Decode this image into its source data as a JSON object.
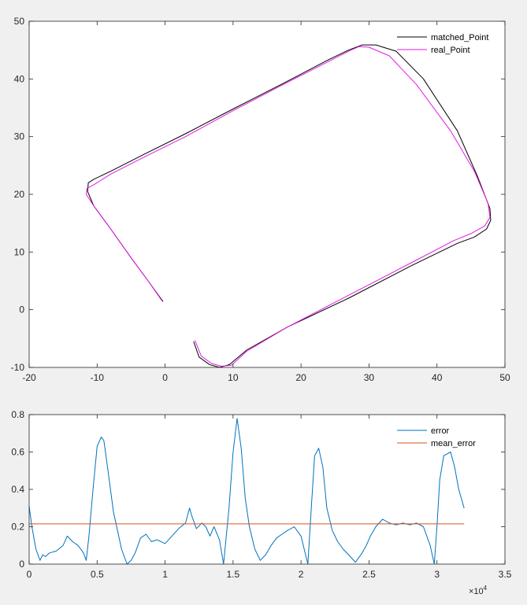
{
  "chart_data": [
    {
      "type": "line",
      "xlim": [
        -20,
        50
      ],
      "ylim": [
        -10,
        50
      ],
      "xticks": [
        -20,
        -10,
        0,
        10,
        20,
        30,
        40,
        50
      ],
      "yticks": [
        -10,
        0,
        10,
        20,
        30,
        40,
        50
      ],
      "xtick_labels": [
        "-20",
        "-10",
        "0",
        "10",
        "20",
        "30",
        "40",
        "50"
      ],
      "ytick_labels": [
        "-10",
        "0",
        "10",
        "20",
        "30",
        "40",
        "50"
      ],
      "grid": false,
      "legend_position": "top-right",
      "series": [
        {
          "name": "matched_Point",
          "color": "#000000",
          "x": [
            -0.3,
            -2.5,
            -5.0,
            -8.0,
            -10.5,
            -11.4,
            -11.3,
            -10.5,
            -8.0,
            -3.0,
            3.0,
            10.0,
            17.0,
            24.0,
            27.0,
            29.0,
            31.0,
            34.0,
            38.0,
            43.0,
            46.0,
            47.8,
            47.9,
            47.3,
            45.5,
            43.0,
            36.0,
            27.0,
            18.0,
            12.0,
            9.5,
            8.0,
            6.5,
            5.0,
            4.2
          ],
          "y": [
            1.4,
            5.0,
            9.0,
            14.0,
            18.0,
            20.5,
            22.0,
            22.6,
            24.0,
            27.0,
            30.5,
            34.8,
            39.0,
            43.3,
            45.0,
            45.9,
            45.9,
            44.8,
            40.0,
            31.0,
            23.0,
            17.5,
            15.5,
            14.0,
            12.6,
            11.5,
            7.5,
            2.0,
            -3.0,
            -7.0,
            -9.5,
            -10.0,
            -9.5,
            -8.2,
            -5.5
          ]
        },
        {
          "name": "real_Point",
          "color": "#e619e6",
          "x": [
            -0.5,
            -2.5,
            -5.0,
            -8.0,
            -10.5,
            -11.6,
            -11.5,
            -10.3,
            -8.0,
            -3.0,
            3.0,
            10.0,
            17.0,
            24.0,
            27.0,
            28.5,
            30.0,
            33.0,
            37.0,
            42.0,
            45.5,
            47.5,
            47.8,
            47.0,
            45.0,
            42.5,
            36.0,
            27.0,
            18.0,
            12.0,
            9.8,
            8.3,
            6.8,
            5.3,
            4.4
          ],
          "y": [
            1.6,
            5.0,
            9.0,
            14.0,
            18.0,
            20.0,
            21.0,
            21.8,
            23.5,
            26.5,
            30.0,
            34.5,
            38.8,
            43.0,
            44.8,
            45.6,
            45.5,
            44.0,
            39.0,
            31.0,
            24.0,
            18.5,
            16.0,
            14.5,
            13.2,
            12.0,
            8.0,
            2.5,
            -3.0,
            -7.2,
            -9.6,
            -9.8,
            -9.3,
            -8.0,
            -5.3
          ]
        }
      ]
    },
    {
      "type": "line",
      "xlim": [
        0,
        35000
      ],
      "ylim": [
        0,
        0.8
      ],
      "xticks": [
        0,
        5000,
        10000,
        15000,
        20000,
        25000,
        30000,
        35000
      ],
      "yticks": [
        0,
        0.2,
        0.4,
        0.6,
        0.8
      ],
      "xtick_labels": [
        "0",
        "0.5",
        "1",
        "1.5",
        "2",
        "2.5",
        "3",
        "3.5"
      ],
      "ytick_labels": [
        "0",
        "0.2",
        "0.4",
        "0.6",
        "0.8"
      ],
      "x_exponent_base": "×10",
      "x_exponent_power": "4",
      "grid": false,
      "legend_position": "top-right",
      "series": [
        {
          "name": "error",
          "color": "#0072bd",
          "x": [
            0,
            200,
            500,
            800,
            1000,
            1200,
            1500,
            2000,
            2500,
            2800,
            3200,
            3600,
            4000,
            4200,
            4400,
            4700,
            5000,
            5300,
            5500,
            5800,
            6200,
            6800,
            7200,
            7500,
            7800,
            8200,
            8600,
            9000,
            9400,
            10000,
            10500,
            11000,
            11500,
            11800,
            12000,
            12300,
            12700,
            13000,
            13300,
            13600,
            14000,
            14300,
            14700,
            15000,
            15300,
            15600,
            15900,
            16200,
            16600,
            17000,
            17400,
            17800,
            18200,
            18600,
            19000,
            19500,
            20000,
            20500,
            20800,
            21000,
            21300,
            21600,
            21900,
            22300,
            22700,
            23100,
            23500,
            24000,
            24500,
            24800,
            25100,
            25500,
            26000,
            26500,
            27000,
            27500,
            28000,
            28500,
            29000,
            29500,
            29800,
            30000,
            30200,
            30500,
            31000,
            31300,
            31600,
            32000
          ],
          "y": [
            0.31,
            0.2,
            0.08,
            0.02,
            0.05,
            0.04,
            0.06,
            0.07,
            0.1,
            0.15,
            0.12,
            0.1,
            0.06,
            0.02,
            0.15,
            0.4,
            0.63,
            0.68,
            0.66,
            0.5,
            0.28,
            0.08,
            0.0,
            0.02,
            0.06,
            0.14,
            0.16,
            0.12,
            0.13,
            0.11,
            0.15,
            0.19,
            0.22,
            0.3,
            0.25,
            0.19,
            0.22,
            0.2,
            0.15,
            0.2,
            0.13,
            0.0,
            0.3,
            0.6,
            0.78,
            0.62,
            0.35,
            0.2,
            0.08,
            0.02,
            0.05,
            0.1,
            0.14,
            0.16,
            0.18,
            0.2,
            0.15,
            0.0,
            0.35,
            0.58,
            0.62,
            0.52,
            0.3,
            0.18,
            0.12,
            0.08,
            0.05,
            0.01,
            0.06,
            0.1,
            0.15,
            0.2,
            0.24,
            0.22,
            0.21,
            0.22,
            0.21,
            0.22,
            0.2,
            0.1,
            0.0,
            0.2,
            0.45,
            0.58,
            0.6,
            0.52,
            0.4,
            0.3
          ]
        },
        {
          "name": "mean_error",
          "color": "#d95319",
          "x": [
            0,
            32000
          ],
          "y": [
            0.215,
            0.215
          ]
        }
      ]
    }
  ]
}
